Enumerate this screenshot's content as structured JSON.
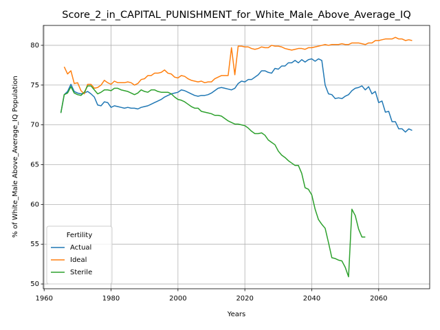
{
  "chart_data": {
    "type": "line",
    "title": "Score_2_in_CAPITAL_PUNISHMENT_for_White_Male_Above_Average_IQ",
    "xlabel": "Years",
    "ylabel": "% of White_Male Above_Average_IQ Population",
    "legend_title": "Fertility",
    "legend": "lower left",
    "grid": true,
    "xlim": [
      1959.75,
      2075.25
    ],
    "ylim": [
      49.4,
      82.5
    ],
    "xticks": [
      1960,
      1980,
      2000,
      2020,
      2040,
      2060
    ],
    "yticks": [
      50,
      55,
      60,
      65,
      70,
      75,
      80
    ],
    "x": [
      1965,
      1966,
      1967,
      1968,
      1969,
      1970,
      1971,
      1972,
      1973,
      1974,
      1975,
      1976,
      1977,
      1978,
      1979,
      1980,
      1981,
      1982,
      1983,
      1984,
      1985,
      1986,
      1987,
      1988,
      1989,
      1990,
      1991,
      1992,
      1993,
      1994,
      1995,
      1996,
      1997,
      1998,
      1999,
      2000,
      2001,
      2002,
      2003,
      2004,
      2005,
      2006,
      2007,
      2008,
      2009,
      2010,
      2011,
      2012,
      2013,
      2014,
      2015,
      2016,
      2017,
      2018,
      2019,
      2020,
      2021,
      2022,
      2023,
      2024,
      2025,
      2026,
      2027,
      2028,
      2029,
      2030,
      2031,
      2032,
      2033,
      2034,
      2035,
      2036,
      2037,
      2038,
      2039,
      2040,
      2041,
      2042,
      2043,
      2044,
      2045,
      2046,
      2047,
      2048,
      2049,
      2050,
      2051,
      2052,
      2053,
      2054,
      2055,
      2056,
      2057,
      2058,
      2059,
      2060,
      2061,
      2062,
      2063,
      2064,
      2065,
      2066,
      2067,
      2068,
      2069,
      2070
    ],
    "series": [
      {
        "name": "Actual",
        "color": "#1f77b4",
        "values": [
          71.5,
          73.8,
          74.2,
          75.1,
          74.2,
          74.0,
          73.9,
          74.0,
          74.2,
          73.9,
          73.5,
          72.5,
          72.4,
          72.9,
          72.8,
          72.2,
          72.4,
          72.3,
          72.2,
          72.1,
          72.2,
          72.1,
          72.1,
          72.0,
          72.2,
          72.3,
          72.4,
          72.6,
          72.8,
          73.0,
          73.2,
          73.5,
          73.7,
          73.9,
          74.0,
          74.1,
          74.4,
          74.3,
          74.1,
          73.9,
          73.7,
          73.6,
          73.7,
          73.7,
          73.8,
          74.0,
          74.3,
          74.6,
          74.7,
          74.6,
          74.5,
          74.4,
          74.6,
          75.2,
          75.5,
          75.4,
          75.7,
          75.7,
          76.0,
          76.3,
          76.8,
          76.8,
          76.6,
          76.5,
          77.1,
          77.0,
          77.4,
          77.4,
          77.8,
          77.8,
          78.1,
          77.8,
          78.2,
          77.9,
          78.2,
          78.3,
          78.0,
          78.3,
          78.1,
          75.0,
          73.9,
          73.8,
          73.3,
          73.4,
          73.3,
          73.6,
          73.8,
          74.3,
          74.6,
          74.7,
          74.9,
          74.4,
          74.8,
          73.9,
          74.2,
          72.8,
          73.0,
          71.6,
          71.7,
          70.4,
          70.4,
          69.5,
          69.5,
          69.1,
          69.5,
          69.3
        ]
      },
      {
        "name": "Ideal",
        "color": "#ff7f0e",
        "values": [
          null,
          77.3,
          76.4,
          76.8,
          75.2,
          75.3,
          74.3,
          73.9,
          75.1,
          75.1,
          74.6,
          74.7,
          75.0,
          75.6,
          75.3,
          75.1,
          75.5,
          75.3,
          75.3,
          75.3,
          75.4,
          75.3,
          75.0,
          75.2,
          75.7,
          75.8,
          76.2,
          76.2,
          76.5,
          76.5,
          76.6,
          76.9,
          76.5,
          76.4,
          76.0,
          75.9,
          76.2,
          76.1,
          75.8,
          75.6,
          75.5,
          75.4,
          75.5,
          75.3,
          75.4,
          75.4,
          75.8,
          76.0,
          76.2,
          76.2,
          76.2,
          79.7,
          76.3,
          79.9,
          79.9,
          79.8,
          79.8,
          79.6,
          79.5,
          79.6,
          79.8,
          79.7,
          79.7,
          80.0,
          79.9,
          79.9,
          79.8,
          79.6,
          79.5,
          79.4,
          79.5,
          79.6,
          79.6,
          79.5,
          79.7,
          79.7,
          79.8,
          79.9,
          80.0,
          80.1,
          80.0,
          80.1,
          80.1,
          80.1,
          80.2,
          80.1,
          80.1,
          80.3,
          80.3,
          80.3,
          80.2,
          80.1,
          80.3,
          80.3,
          80.6,
          80.6,
          80.7,
          80.8,
          80.8,
          80.8,
          81.0,
          80.8,
          80.8,
          80.6,
          80.7,
          80.6
        ]
      },
      {
        "name": "Sterile",
        "color": "#2ca02c",
        "values": [
          71.5,
          73.8,
          74.0,
          74.8,
          74.0,
          73.8,
          73.7,
          74.1,
          74.9,
          74.9,
          74.4,
          73.9,
          74.1,
          74.4,
          74.4,
          74.3,
          74.6,
          74.6,
          74.4,
          74.3,
          74.2,
          74.0,
          73.8,
          74.0,
          74.4,
          74.2,
          74.1,
          74.4,
          74.4,
          74.2,
          74.1,
          74.1,
          74.1,
          73.9,
          73.5,
          73.2,
          73.1,
          72.9,
          72.6,
          72.3,
          72.1,
          72.1,
          71.7,
          71.6,
          71.5,
          71.4,
          71.2,
          71.2,
          71.1,
          70.8,
          70.5,
          70.3,
          70.1,
          70.1,
          70.0,
          69.9,
          69.6,
          69.2,
          68.9,
          68.9,
          69.0,
          68.7,
          68.1,
          67.8,
          67.5,
          66.7,
          66.2,
          65.9,
          65.5,
          65.2,
          64.9,
          64.9,
          63.9,
          62.1,
          61.9,
          61.2,
          59.4,
          58.1,
          57.5,
          57.0,
          55.2,
          53.3,
          53.2,
          53.0,
          52.9,
          52.1,
          50.9,
          59.4,
          58.6,
          56.9,
          55.9,
          55.9,
          null,
          null,
          null,
          null,
          null,
          null,
          null,
          null,
          null,
          null,
          null,
          null,
          null,
          null
        ]
      }
    ]
  }
}
